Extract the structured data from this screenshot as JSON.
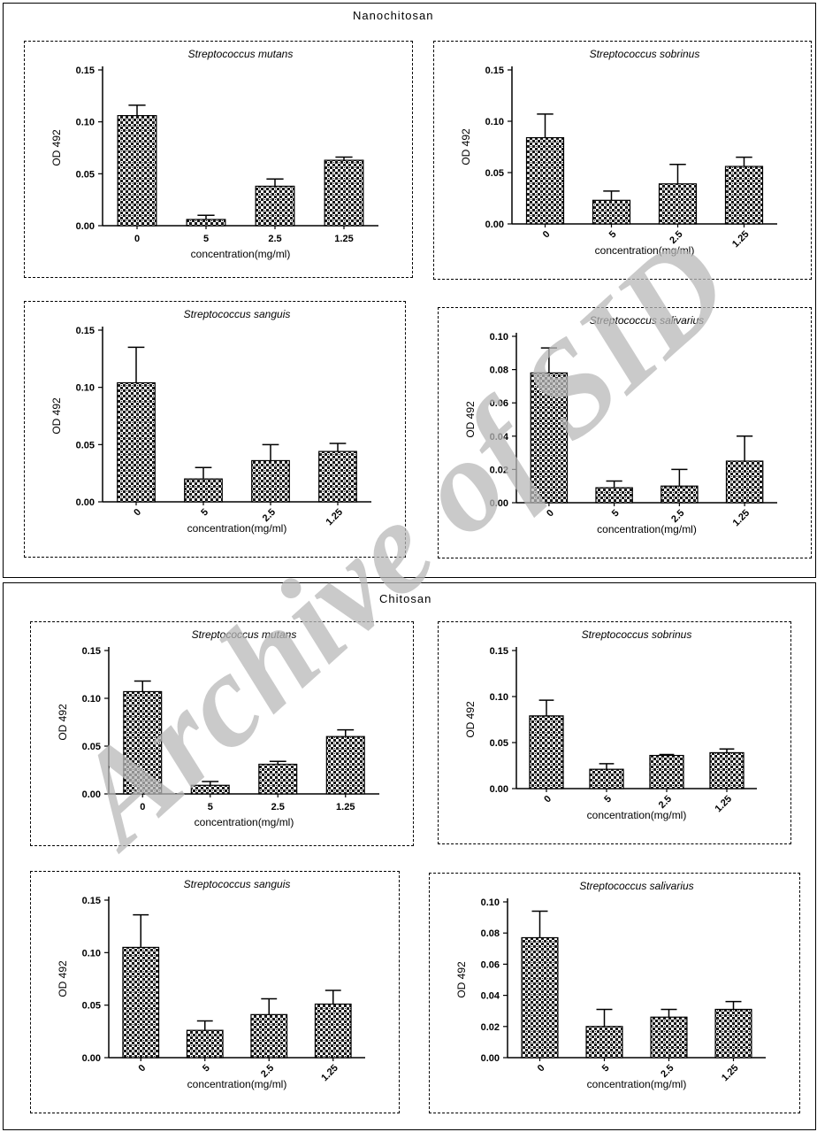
{
  "figure": {
    "watermark": "Archive of SID",
    "sections": [
      {
        "title": "Nanochitosan"
      },
      {
        "title": "Chitosan"
      }
    ]
  },
  "chart_data": [
    {
      "type": "bar",
      "section": "Nanochitosan",
      "title": "Streptococcus mutans",
      "categories": [
        "0",
        "5",
        "2.5",
        "1.25"
      ],
      "values": [
        0.106,
        0.006,
        0.038,
        0.063
      ],
      "errors": [
        0.01,
        0.004,
        0.007,
        0.003
      ],
      "xlabel": "concentration(mg/ml)",
      "ylabel": "OD 492",
      "ylim": [
        0,
        0.15
      ],
      "yticks": [
        "0.00",
        "0.05",
        "0.10",
        "0.15"
      ],
      "rotate_xticks": false
    },
    {
      "type": "bar",
      "section": "Nanochitosan",
      "title": "Streptococcus sobrinus",
      "categories": [
        "0",
        "5",
        "2.5",
        "1.25"
      ],
      "values": [
        0.084,
        0.023,
        0.039,
        0.056
      ],
      "errors": [
        0.023,
        0.009,
        0.019,
        0.009
      ],
      "xlabel": "concentration(mg/ml)",
      "ylabel": "OD 492",
      "ylim": [
        0,
        0.15
      ],
      "yticks": [
        "0.00",
        "0.05",
        "0.10",
        "0.15"
      ],
      "rotate_xticks": true
    },
    {
      "type": "bar",
      "section": "Nanochitosan",
      "title": "Streptococcus sanguis",
      "categories": [
        "0",
        "5",
        "2.5",
        "1.25"
      ],
      "values": [
        0.104,
        0.02,
        0.036,
        0.044
      ],
      "errors": [
        0.031,
        0.01,
        0.014,
        0.007
      ],
      "xlabel": "concentration(mg/ml)",
      "ylabel": "OD 492",
      "ylim": [
        0,
        0.15
      ],
      "yticks": [
        "0.00",
        "0.05",
        "0.10",
        "0.15"
      ],
      "rotate_xticks": true
    },
    {
      "type": "bar",
      "section": "Nanochitosan",
      "title": "Streptococcus salivarius",
      "categories": [
        "0",
        "5",
        "2.5",
        "1.25"
      ],
      "values": [
        0.078,
        0.009,
        0.01,
        0.025
      ],
      "errors": [
        0.015,
        0.004,
        0.01,
        0.015
      ],
      "xlabel": "concentration(mg/ml)",
      "ylabel": "OD 492",
      "ylim": [
        0,
        0.1
      ],
      "yticks": [
        "0.00",
        "0.02",
        "0.04",
        "0.06",
        "0.08",
        "0.10"
      ],
      "rotate_xticks": true
    },
    {
      "type": "bar",
      "section": "Chitosan",
      "title": "Streptococcus mutans",
      "categories": [
        "0",
        "5",
        "2.5",
        "1.25"
      ],
      "values": [
        0.107,
        0.009,
        0.031,
        0.06
      ],
      "errors": [
        0.011,
        0.004,
        0.003,
        0.007
      ],
      "xlabel": "concentration(mg/ml)",
      "ylabel": "OD 492",
      "ylim": [
        0,
        0.15
      ],
      "yticks": [
        "0.00",
        "0.05",
        "0.10",
        "0.15"
      ],
      "rotate_xticks": false
    },
    {
      "type": "bar",
      "section": "Chitosan",
      "title": "Streptococcus sobrinus",
      "categories": [
        "0",
        "5",
        "2.5",
        "1.25"
      ],
      "values": [
        0.079,
        0.021,
        0.036,
        0.039
      ],
      "errors": [
        0.017,
        0.006,
        0.001,
        0.004
      ],
      "xlabel": "concentration(mg/ml)",
      "ylabel": "OD 492",
      "ylim": [
        0,
        0.15
      ],
      "yticks": [
        "0.00",
        "0.05",
        "0.10",
        "0.15"
      ],
      "rotate_xticks": true
    },
    {
      "type": "bar",
      "section": "Chitosan",
      "title": "Streptococcus sanguis",
      "categories": [
        "0",
        "5",
        "2.5",
        "1.25"
      ],
      "values": [
        0.105,
        0.026,
        0.041,
        0.051
      ],
      "errors": [
        0.031,
        0.009,
        0.015,
        0.013
      ],
      "xlabel": "concentration(mg/ml)",
      "ylabel": "OD 492",
      "ylim": [
        0,
        0.15
      ],
      "yticks": [
        "0.00",
        "0.05",
        "0.10",
        "0.15"
      ],
      "rotate_xticks": true
    },
    {
      "type": "bar",
      "section": "Chitosan",
      "title": "Streptococcus salivarius",
      "categories": [
        "0",
        "5",
        "2.5",
        "1.25"
      ],
      "values": [
        0.077,
        0.02,
        0.026,
        0.031
      ],
      "errors": [
        0.017,
        0.011,
        0.005,
        0.005
      ],
      "xlabel": "concentration(mg/ml)",
      "ylabel": "OD 492",
      "ylim": [
        0,
        0.1
      ],
      "yticks": [
        "0.00",
        "0.02",
        "0.04",
        "0.06",
        "0.08",
        "0.10"
      ],
      "rotate_xticks": true
    }
  ]
}
